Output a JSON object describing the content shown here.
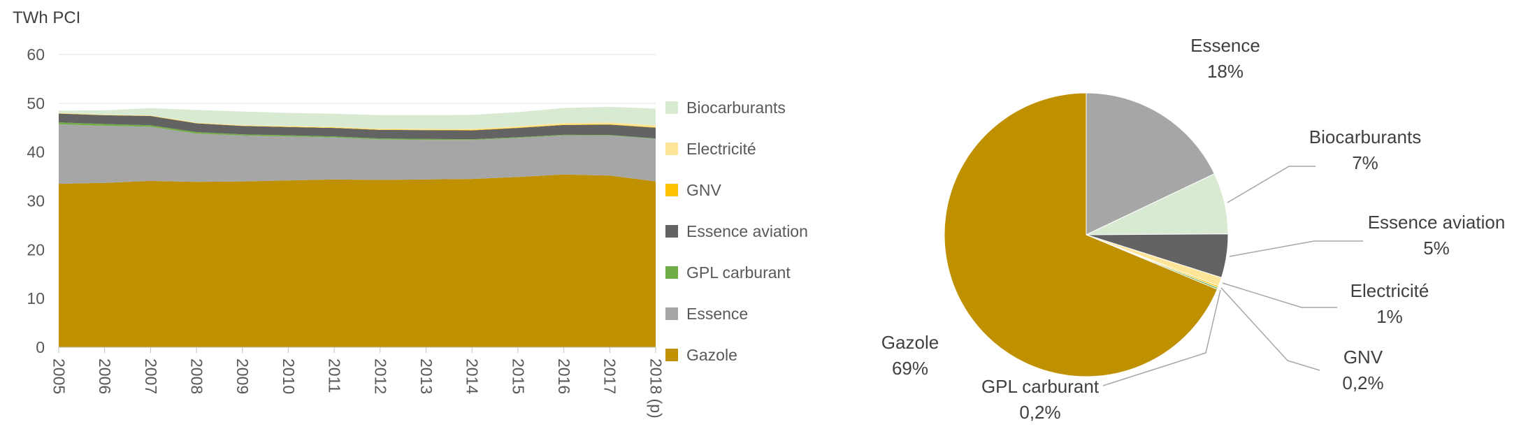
{
  "chart_data": [
    {
      "type": "area",
      "stacked": true,
      "ylabel": "TWh PCI",
      "ylim": [
        0,
        60
      ],
      "yticks": [
        0,
        10,
        20,
        30,
        40,
        50,
        60
      ],
      "grid": true,
      "legend_position": "right",
      "categories": [
        "2005",
        "2006",
        "2007",
        "2008",
        "2009",
        "2010",
        "2011",
        "2012",
        "2013",
        "2014",
        "2015",
        "2016",
        "2017",
        "2018 (p)"
      ],
      "series": [
        {
          "name": "Gazole",
          "color": "#BF9000",
          "values": [
            33.5,
            33.7,
            34.1,
            33.9,
            34.0,
            34.2,
            34.4,
            34.3,
            34.4,
            34.5,
            34.9,
            35.4,
            35.2,
            34.0
          ]
        },
        {
          "name": "Essence",
          "color": "#A6A6A6",
          "values": [
            12.2,
            11.7,
            11.1,
            9.9,
            9.4,
            9.0,
            8.6,
            8.3,
            8.1,
            8.0,
            8.0,
            8.0,
            8.2,
            8.7
          ]
        },
        {
          "name": "GPL carburant",
          "color": "#70AD47",
          "values": [
            0.4,
            0.35,
            0.3,
            0.3,
            0.25,
            0.25,
            0.2,
            0.2,
            0.2,
            0.15,
            0.15,
            0.15,
            0.12,
            0.1
          ]
        },
        {
          "name": "Essence aviation",
          "color": "#636363",
          "values": [
            1.8,
            1.8,
            1.9,
            1.8,
            1.7,
            1.7,
            1.75,
            1.75,
            1.8,
            1.8,
            1.9,
            2.0,
            2.1,
            2.2
          ]
        },
        {
          "name": "GNV",
          "color": "#FFC000",
          "values": [
            0.05,
            0.05,
            0.05,
            0.05,
            0.06,
            0.06,
            0.07,
            0.07,
            0.08,
            0.08,
            0.09,
            0.1,
            0.1,
            0.1
          ]
        },
        {
          "name": "Electricité",
          "color": "#FFE599",
          "values": [
            0.05,
            0.06,
            0.07,
            0.08,
            0.1,
            0.12,
            0.14,
            0.16,
            0.18,
            0.2,
            0.25,
            0.3,
            0.35,
            0.4
          ]
        },
        {
          "name": "Biocarburants",
          "color": "#D9EAD3",
          "values": [
            0.5,
            0.9,
            1.5,
            2.6,
            2.8,
            2.7,
            2.7,
            2.8,
            2.8,
            2.9,
            2.9,
            3.1,
            3.2,
            3.4
          ]
        }
      ],
      "legend_order_top_to_bottom": [
        "Biocarburants",
        "Electricité",
        "GNV",
        "Essence aviation",
        "GPL carburant",
        "Essence",
        "Gazole"
      ]
    },
    {
      "type": "pie",
      "start_angle": "12-oclock",
      "direction": "clockwise",
      "slices": [
        {
          "label": "Essence",
          "value": 18,
          "value_label": "18%",
          "color": "#A6A6A6"
        },
        {
          "label": "Biocarburants",
          "value": 7,
          "value_label": "7%",
          "color": "#D9EAD3"
        },
        {
          "label": "Essence aviation",
          "value": 5,
          "value_label": "5%",
          "color": "#636363"
        },
        {
          "label": "Electricité",
          "value": 1,
          "value_label": "1%",
          "color": "#FFE599"
        },
        {
          "label": "GNV",
          "value": 0.2,
          "value_label": "0,2%",
          "color": "#FFC000"
        },
        {
          "label": "GPL carburant",
          "value": 0.2,
          "value_label": "0,2%",
          "color": "#70AD47"
        },
        {
          "label": "Gazole",
          "value": 69,
          "value_label": "69%",
          "color": "#BF9000"
        }
      ]
    }
  ]
}
